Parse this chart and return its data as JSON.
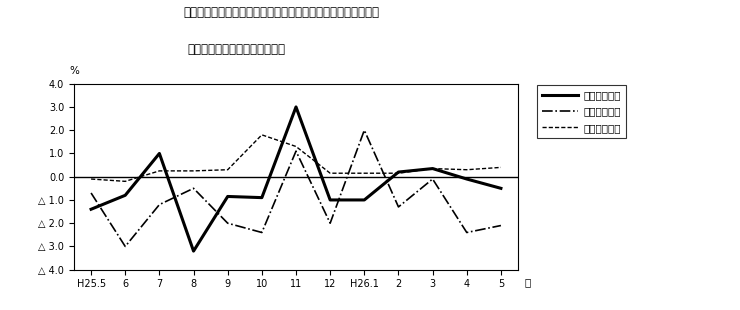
{
  "title_line1": "第４図　賃金、労働時間、常用雇用指数　対前年同月比の推移",
  "title_line2": "（規横５人以上　調査産業計）",
  "xlabel": "月",
  "ylabel": "%",
  "x_labels": [
    "H25.5",
    "6",
    "7",
    "8",
    "9",
    "10",
    "11",
    "12",
    "H26.1",
    "2",
    "3",
    "4",
    "5"
  ],
  "ylim": [
    -4.0,
    4.0
  ],
  "yticks": [
    4.0,
    3.0,
    2.0,
    1.0,
    0.0,
    -1.0,
    -2.0,
    -3.0,
    -4.0
  ],
  "ytick_labels": [
    "4.0",
    "3.0",
    "2.0",
    "1.0",
    "0.0",
    "△ 1.0",
    "△ 2.0",
    "△ 3.0",
    "△ 4.0"
  ],
  "series_genkin": [
    -1.4,
    -0.8,
    1.0,
    -3.2,
    -0.85,
    -0.9,
    3.0,
    -1.0,
    -1.0,
    0.2,
    0.35,
    -0.1,
    -0.5
  ],
  "series_jitsu": [
    -0.7,
    -3.0,
    -1.2,
    -0.5,
    -2.0,
    -2.4,
    1.1,
    -2.0,
    2.0,
    -1.3,
    -0.1,
    -2.4,
    -2.1
  ],
  "series_koyo": [
    -0.1,
    -0.2,
    0.25,
    0.25,
    0.3,
    1.8,
    1.3,
    0.15,
    0.15,
    0.15,
    0.35,
    0.3,
    0.4
  ],
  "legend_labels": [
    "現金給与総額",
    "総実労働時間",
    "常用雇用指数"
  ],
  "line_color": "#000000"
}
